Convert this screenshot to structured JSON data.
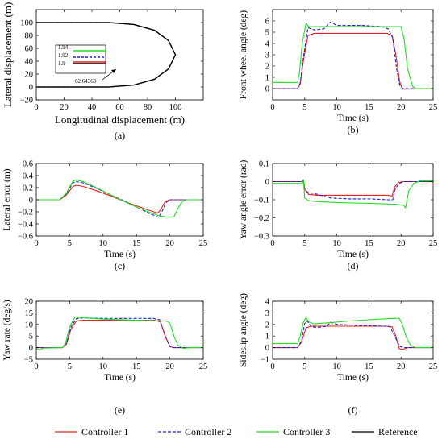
{
  "colors": {
    "controller1": "#ee2020",
    "controller2": "#2222cc",
    "controller3": "#22dd22",
    "reference": "#000000",
    "axis": "#000000",
    "background": "#ffffff"
  },
  "legend": {
    "items": [
      {
        "label": "Controller 1",
        "style": "solid",
        "color_key": "controller1"
      },
      {
        "label": "Controller 2",
        "style": "dashed",
        "color_key": "controller2"
      },
      {
        "label": "Controller 3",
        "style": "solid",
        "color_key": "controller3"
      },
      {
        "label": "Reference",
        "style": "solid",
        "color_key": "reference"
      }
    ],
    "placement": "bottom"
  },
  "chart_data": [
    {
      "id": "a",
      "type": "line",
      "caption": "(a)",
      "xlabel": "Longitudinal displacement (m)",
      "ylabel": "Lateral displacement (m)",
      "xlim": [
        0,
        120
      ],
      "ylim": [
        -20,
        120
      ],
      "xticks": [
        0,
        20,
        40,
        60,
        80,
        100
      ],
      "yticks": [
        -20,
        0,
        20,
        40,
        60,
        80,
        100
      ],
      "tick_labels_x": [
        "0",
        "20",
        "40",
        "60",
        "80",
        "100"
      ],
      "tick_labels_y": [
        "−20",
        "0",
        "20",
        "40",
        "60",
        "80",
        "100"
      ],
      "grid": false,
      "series": [
        {
          "color_key": "controller1",
          "x": [
            0,
            52,
            70,
            85,
            95,
            100,
            95,
            85,
            70,
            52,
            0
          ],
          "y": [
            100,
            100,
            97,
            88,
            72,
            50,
            28,
            12,
            3,
            0,
            0
          ]
        },
        {
          "color_key": "controller2",
          "x": [
            0,
            52,
            70,
            85,
            95,
            100,
            95,
            85,
            70,
            52,
            0
          ],
          "y": [
            100,
            100,
            97,
            88,
            72,
            50,
            28,
            12,
            3,
            0,
            0
          ]
        },
        {
          "color_key": "controller3",
          "x": [
            0,
            52,
            70,
            85,
            95,
            100,
            95,
            85,
            70,
            52,
            0
          ],
          "y": [
            100,
            100,
            97,
            88,
            72,
            50,
            28,
            12,
            3,
            0,
            0
          ]
        },
        {
          "color_key": "reference",
          "x": [
            0,
            52,
            70,
            85,
            95,
            100,
            95,
            85,
            70,
            52,
            0
          ],
          "y": [
            100,
            100,
            97,
            88,
            72,
            50,
            28,
            12,
            3,
            0,
            0
          ]
        }
      ],
      "inset": {
        "yticks": [
          1.94,
          1.92,
          1.9
        ],
        "tick_labels": [
          "1.94",
          "1.92",
          "1.9"
        ],
        "annotation": "62.64369"
      }
    },
    {
      "id": "b",
      "type": "line",
      "caption": "(b)",
      "xlabel": "Time (s)",
      "ylabel": "Front wheel angle (deg)",
      "xlim": [
        0,
        25
      ],
      "ylim": [
        -1,
        7
      ],
      "xticks": [
        0,
        5,
        10,
        15,
        20,
        25
      ],
      "yticks": [
        0,
        1,
        2,
        3,
        4,
        5,
        6
      ],
      "tick_labels_x": [
        "0",
        "5",
        "10",
        "15",
        "20",
        "25"
      ],
      "tick_labels_y": [
        "0",
        "1",
        "2",
        "3",
        "4",
        "5",
        "6"
      ],
      "grid": false,
      "series": [
        {
          "color_key": "controller1",
          "x": [
            0,
            3.9,
            4.3,
            4.8,
            5.5,
            6.5,
            17.8,
            18.6,
            19.2,
            19.8,
            20.2,
            25
          ],
          "y": [
            0,
            0,
            0.4,
            2.5,
            4.7,
            4.9,
            4.9,
            4.7,
            3.0,
            0.6,
            -0.05,
            0
          ]
        },
        {
          "color_key": "controller2",
          "x": [
            0,
            3.9,
            4.3,
            4.8,
            5.5,
            6.5,
            8.0,
            9.0,
            10.0,
            12.0,
            14.0,
            17.0,
            18.0,
            18.7,
            19.3,
            19.8,
            20.3,
            25
          ],
          "y": [
            0,
            0,
            0.5,
            2.8,
            5.4,
            5.2,
            5.3,
            5.9,
            5.6,
            5.6,
            5.6,
            5.5,
            5.3,
            4.5,
            1.8,
            0.3,
            0,
            0
          ]
        },
        {
          "color_key": "controller3",
          "x": [
            0,
            3.9,
            4.2,
            4.6,
            5.2,
            5.6,
            6.5,
            8.0,
            12.0,
            18.0,
            20.0,
            20.5,
            21.0,
            21.8,
            22.3,
            25
          ],
          "y": [
            0.55,
            0.55,
            1.5,
            4.0,
            5.8,
            5.5,
            5.5,
            5.5,
            5.5,
            5.5,
            5.5,
            4.3,
            1.8,
            0.2,
            0,
            0
          ]
        }
      ]
    },
    {
      "id": "c",
      "type": "line",
      "caption": "(c)",
      "xlabel": "Time (s)",
      "ylabel": "Lateral error (m)",
      "xlim": [
        0,
        25
      ],
      "ylim": [
        -0.6,
        0.6
      ],
      "xticks": [
        0,
        5,
        10,
        15,
        20,
        25
      ],
      "yticks": [
        -0.6,
        -0.4,
        -0.2,
        0,
        0.2,
        0.4,
        0.6
      ],
      "tick_labels_x": [
        "0",
        "5",
        "10",
        "15",
        "20",
        "25"
      ],
      "tick_labels_y": [
        "−0.6",
        "−0.4",
        "−0.2",
        "0",
        "0.2",
        "0.4",
        "0.6"
      ],
      "grid": false,
      "series": [
        {
          "color_key": "controller1",
          "x": [
            0,
            3.5,
            4.5,
            5.5,
            6.0,
            7.0,
            9.0,
            11.0,
            13.0,
            15.0,
            17.0,
            18.2,
            18.7,
            19.3,
            20.0,
            25
          ],
          "y": [
            0,
            0,
            0.08,
            0.22,
            0.24,
            0.22,
            0.15,
            0.07,
            -0.02,
            -0.1,
            -0.18,
            -0.22,
            -0.15,
            -0.03,
            0,
            0
          ]
        },
        {
          "color_key": "controller2",
          "x": [
            0,
            3.5,
            4.5,
            5.5,
            6.0,
            7.0,
            9.0,
            11.0,
            13.0,
            15.0,
            17.0,
            18.3,
            18.8,
            19.4,
            20.0,
            25
          ],
          "y": [
            0,
            0,
            0.1,
            0.28,
            0.3,
            0.28,
            0.19,
            0.09,
            -0.01,
            -0.12,
            -0.23,
            -0.29,
            -0.2,
            -0.05,
            0,
            0
          ]
        },
        {
          "color_key": "controller3",
          "x": [
            0,
            3.5,
            4.5,
            5.5,
            6.0,
            7.0,
            9.0,
            11.0,
            13.0,
            15.0,
            17.0,
            18.5,
            20.0,
            20.6,
            21.2,
            21.8,
            22.5,
            25
          ],
          "y": [
            0,
            0,
            0.11,
            0.31,
            0.33,
            0.3,
            0.2,
            0.09,
            -0.02,
            -0.12,
            -0.21,
            -0.27,
            -0.29,
            -0.28,
            -0.15,
            -0.03,
            0,
            0
          ]
        }
      ]
    },
    {
      "id": "d",
      "type": "line",
      "caption": "(d)",
      "xlabel": "Time (s)",
      "ylabel": "Yaw angle error (rad)",
      "xlim": [
        0,
        25
      ],
      "ylim": [
        -0.3,
        0.1
      ],
      "xticks": [
        0,
        5,
        10,
        15,
        20,
        25
      ],
      "yticks": [
        -0.3,
        -0.2,
        -0.1,
        0,
        0.1
      ],
      "tick_labels_x": [
        "0",
        "5",
        "10",
        "15",
        "20",
        "25"
      ],
      "tick_labels_y": [
        "−0.3",
        "−0.2",
        "−0.1",
        "0",
        "0.1"
      ],
      "grid": false,
      "series": [
        {
          "color_key": "controller1",
          "x": [
            0,
            4.6,
            4.8,
            5.0,
            5.6,
            7.0,
            10.0,
            15.0,
            18.0,
            18.6,
            19.0,
            19.6,
            20.2,
            25
          ],
          "y": [
            0,
            0,
            0.01,
            -0.04,
            -0.07,
            -0.075,
            -0.075,
            -0.075,
            -0.075,
            -0.08,
            -0.03,
            -0.005,
            0,
            0
          ]
        },
        {
          "color_key": "controller2",
          "x": [
            0,
            4.6,
            4.8,
            5.0,
            5.6,
            7.0,
            9.0,
            12.0,
            15.0,
            18.0,
            18.7,
            19.1,
            19.7,
            20.4,
            25
          ],
          "y": [
            0,
            0,
            0.01,
            -0.05,
            -0.06,
            -0.07,
            -0.09,
            -0.095,
            -0.095,
            -0.1,
            -0.1,
            -0.04,
            -0.01,
            0,
            0
          ]
        },
        {
          "color_key": "controller3",
          "x": [
            0,
            4.6,
            4.8,
            5.0,
            5.6,
            7.0,
            10.0,
            15.0,
            19.0,
            20.4,
            20.7,
            21.2,
            22.0,
            23.0,
            25
          ],
          "y": [
            -0.01,
            -0.01,
            0.01,
            -0.09,
            -0.105,
            -0.11,
            -0.115,
            -0.12,
            -0.125,
            -0.13,
            -0.145,
            -0.05,
            -0.01,
            0.005,
            0.005
          ]
        }
      ]
    },
    {
      "id": "e",
      "type": "line",
      "caption": "(e)",
      "xlabel": "Time (s)",
      "ylabel": "Yaw rate (deg/s)",
      "xlim": [
        0,
        25
      ],
      "ylim": [
        -5,
        20
      ],
      "xticks": [
        0,
        5,
        10,
        15,
        20,
        25
      ],
      "yticks": [
        -5,
        0,
        5,
        10,
        15,
        20
      ],
      "tick_labels_x": [
        "0",
        "5",
        "10",
        "15",
        "20",
        "25"
      ],
      "tick_labels_y": [
        "−5",
        "0",
        "5",
        "10",
        "15",
        "20"
      ],
      "grid": false,
      "series": [
        {
          "color_key": "controller1",
          "x": [
            0,
            3.9,
            4.5,
            5.2,
            6.0,
            7.0,
            17.8,
            18.6,
            19.3,
            20.0,
            20.5,
            25
          ],
          "y": [
            0,
            0,
            1.5,
            8.0,
            11.5,
            11.8,
            11.8,
            11.0,
            5.0,
            0.5,
            0,
            0
          ]
        },
        {
          "color_key": "controller2",
          "x": [
            0,
            3.9,
            4.5,
            5.2,
            6.0,
            7.0,
            10.0,
            14.0,
            17.5,
            18.5,
            19.3,
            20.0,
            20.6,
            25
          ],
          "y": [
            0,
            0,
            1.8,
            9.0,
            12.5,
            12.8,
            12.6,
            12.6,
            12.6,
            12.0,
            5.0,
            0.5,
            0,
            0
          ]
        },
        {
          "color_key": "controller3",
          "x": [
            0,
            0.5,
            1.0,
            3.9,
            4.4,
            5.0,
            5.8,
            6.5,
            10.0,
            15.0,
            19.5,
            20.0,
            20.6,
            21.2,
            22.0,
            23.0,
            25
          ],
          "y": [
            -0.5,
            -1.0,
            -0.2,
            0,
            2.0,
            9.0,
            13.2,
            13.0,
            12.3,
            11.8,
            11.5,
            10.5,
            5.0,
            1.0,
            -0.3,
            0,
            0
          ]
        }
      ]
    },
    {
      "id": "f",
      "type": "line",
      "caption": "(f)",
      "xlabel": "Time (s)",
      "ylabel": "Sideslip angle (deg)",
      "xlim": [
        0,
        25
      ],
      "ylim": [
        -1,
        4
      ],
      "xticks": [
        0,
        5,
        10,
        15,
        20,
        25
      ],
      "yticks": [
        -1,
        0,
        1,
        2,
        3,
        4
      ],
      "tick_labels_x": [
        "0",
        "5",
        "10",
        "15",
        "20",
        "25"
      ],
      "tick_labels_y": [
        "−1",
        "0",
        "1",
        "2",
        "3",
        "4"
      ],
      "grid": false,
      "series": [
        {
          "color_key": "controller1",
          "x": [
            0,
            3.9,
            4.5,
            5.2,
            6.0,
            7.0,
            17.8,
            18.6,
            19.2,
            19.7,
            20.3,
            21.0,
            25
          ],
          "y": [
            0,
            0,
            0.5,
            1.7,
            1.85,
            1.85,
            1.85,
            1.8,
            1.0,
            -0.1,
            -0.15,
            0,
            0
          ]
        },
        {
          "color_key": "controller2",
          "x": [
            0,
            3.9,
            4.5,
            5.0,
            5.4,
            6.0,
            7.0,
            8.5,
            9.0,
            10.0,
            14.0,
            17.5,
            18.3,
            19.0,
            19.8,
            20.5,
            25
          ],
          "y": [
            0,
            0,
            0.6,
            2.1,
            2.3,
            1.8,
            1.75,
            1.85,
            2.2,
            2.0,
            1.9,
            1.85,
            1.8,
            1.0,
            0.1,
            0,
            0
          ]
        },
        {
          "color_key": "controller3",
          "x": [
            0,
            3.9,
            4.3,
            4.8,
            5.2,
            5.7,
            6.5,
            9.0,
            12.0,
            15.0,
            18.0,
            19.7,
            20.2,
            20.8,
            21.5,
            22.3,
            25
          ],
          "y": [
            0.35,
            0.35,
            1.0,
            2.2,
            2.6,
            2.2,
            2.05,
            2.15,
            2.3,
            2.4,
            2.5,
            2.55,
            2.0,
            0.9,
            0.2,
            0,
            0
          ]
        }
      ]
    }
  ]
}
